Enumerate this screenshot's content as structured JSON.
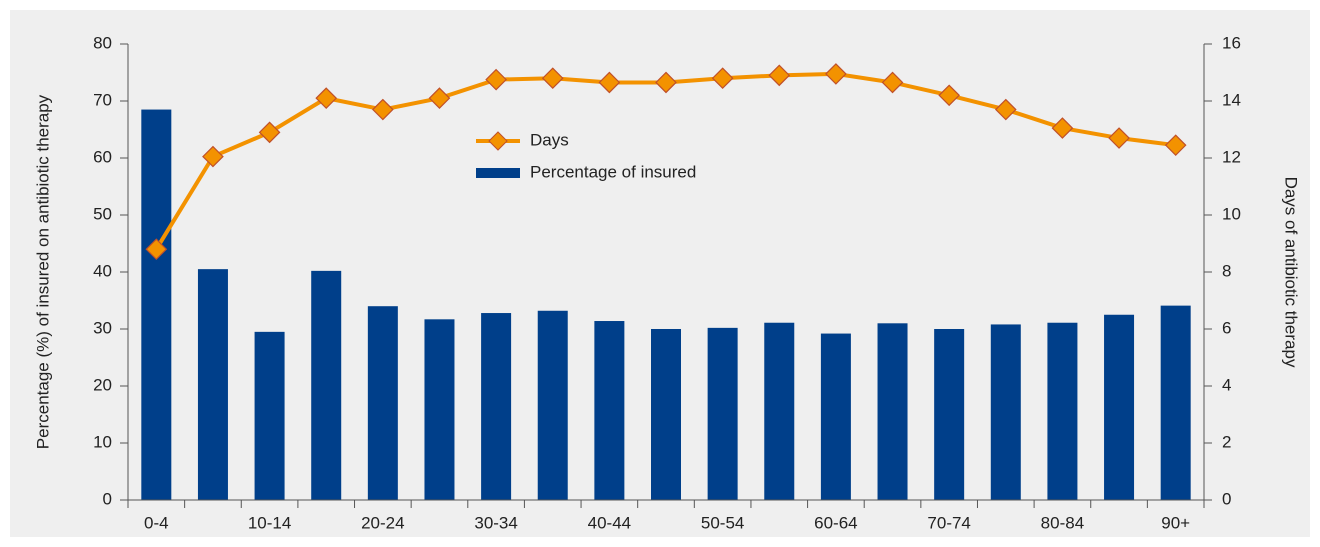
{
  "chart_data": {
    "type": "bar_line",
    "y_label": "Percentage (%) of insured on antibiotic therapy",
    "y2_label": "Days of antibiotic therapy",
    "categories": [
      "0-4",
      null,
      "10-14",
      null,
      "20-24",
      null,
      "30-34",
      null,
      "40-44",
      null,
      "50-54",
      null,
      "60-64",
      null,
      "70-74",
      null,
      "80-84",
      null,
      "90+"
    ],
    "series": [
      {
        "name": "Days",
        "color": "#f39200",
        "axis": "y2",
        "type": "line",
        "values": [
          8.8,
          12.05,
          12.9,
          14.1,
          13.7,
          14.1,
          14.75,
          14.8,
          14.65,
          14.65,
          14.8,
          14.9,
          14.95,
          14.65,
          14.2,
          13.7,
          13.05,
          12.7,
          12.45
        ]
      },
      {
        "name": "Percentage of insured",
        "color": "#003f8a",
        "type": "bar",
        "values": [
          68.5,
          40.5,
          29.5,
          40.2,
          34,
          31.7,
          32.8,
          33.2,
          31.4,
          30,
          30.2,
          31.1,
          29.2,
          31,
          30,
          30.8,
          31.1,
          32.5,
          34.1
        ]
      }
    ],
    "ylim": [
      0,
      80
    ],
    "yticks": [
      0,
      10,
      20,
      30,
      40,
      50,
      60,
      70,
      80
    ],
    "y2lim": [
      0,
      16
    ],
    "y2ticks": [
      0,
      2,
      4,
      6,
      8,
      10,
      12,
      14,
      16
    ]
  }
}
